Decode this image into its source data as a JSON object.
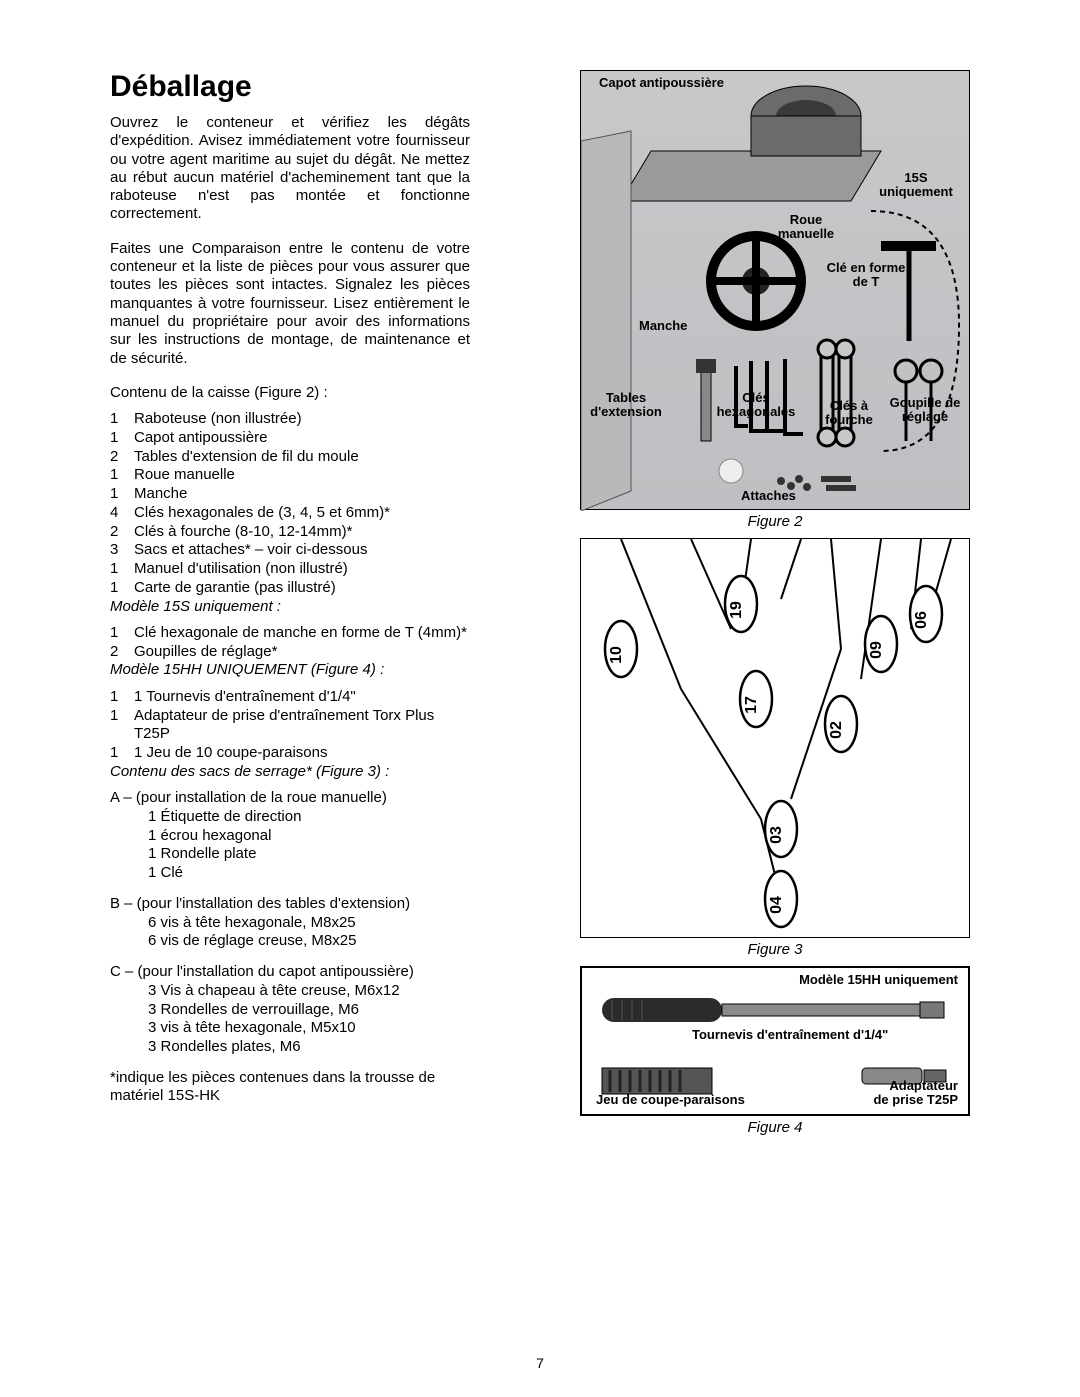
{
  "title": "Déballage",
  "paragraph1": "Ouvrez le conteneur et vérifiez les dégâts d'expédition. Avisez immédiatement votre fournisseur ou votre agent maritime au sujet du dégât. Ne mettez au rébut aucun matériel d'acheminement tant que la raboteuse n'est pas montée et fonctionne correctement.",
  "paragraph2": "Faites une Comparaison entre le contenu de votre conteneur et la liste de pièces pour vous assurer que toutes les pièces sont intactes. Signalez les pièces manquantes à votre fournisseur. Lisez entièrement le manuel du propriétaire pour avoir des informations sur les instructions de montage, de maintenance et de sécurité.",
  "contentsHeading": "Contenu de la caisse (Figure 2) :",
  "contents": [
    {
      "qty": "1",
      "desc": "Raboteuse (non illustrée)"
    },
    {
      "qty": "1",
      "desc": "Capot antipoussière"
    },
    {
      "qty": "2",
      "desc": "Tables d'extension de fil du moule"
    },
    {
      "qty": "1",
      "desc": "Roue manuelle"
    },
    {
      "qty": "1",
      "desc": "Manche"
    },
    {
      "qty": "4",
      "desc": "Clés hexagonales de (3, 4, 5 et 6mm)*"
    },
    {
      "qty": "2",
      "desc": "Clés à fourche (8-10, 12-14mm)*"
    },
    {
      "qty": "3",
      "desc": "Sacs et attaches* – voir ci-dessous"
    },
    {
      "qty": "1",
      "desc": "Manuel d'utilisation (non illustré)"
    },
    {
      "qty": "1",
      "desc": "Carte de garantie (pas illustré)"
    }
  ],
  "model15SHeading": "Modèle 15S uniquement :",
  "model15S": [
    {
      "qty": "1",
      "desc": "Clé hexagonale de manche en forme de T (4mm)*"
    },
    {
      "qty": "2",
      "desc": "Goupilles de réglage*"
    }
  ],
  "model15HHHeading": "Modèle 15HH UNIQUEMENT (Figure 4) :",
  "model15HH": [
    {
      "qty": "1",
      "desc": "1 Tournevis d'entraînement d'1/4\""
    },
    {
      "qty": "1",
      "desc": "Adaptateur de prise d'entraînement Torx Plus T25P"
    },
    {
      "qty": "1",
      "desc": "1 Jeu de 10 coupe-paraisons"
    }
  ],
  "bagsHeading": "Contenu des sacs de serrage* (Figure 3) :",
  "bagA": {
    "first": "A – (pour installation de la roue manuelle)",
    "subs": [
      "1 Étiquette de direction",
      "1 écrou hexagonal",
      "1 Rondelle plate",
      "1 Clé"
    ]
  },
  "bagB": {
    "first": "B – (pour l'installation des tables d'extension)",
    "subs": [
      "6 vis à tête hexagonale, M8x25",
      "6 vis de réglage creuse, M8x25"
    ]
  },
  "bagC": {
    "first": "C – (pour l'installation du capot antipoussière)",
    "subs": [
      "3 Vis à chapeau à tête creuse, M6x12",
      "3 Rondelles de verrouillage, M6",
      "3 vis à tête hexagonale, M5x10",
      "3 Rondelles plates, M6"
    ]
  },
  "footnote": "*indique les pièces contenues dans la trousse de matériel 15S-HK",
  "fig2Caption": "Figure 2",
  "fig3Caption": "Figure 3",
  "fig4Caption": "Figure 4",
  "fig2Labels": {
    "capot": "Capot antipoussière",
    "s15": "15S uniquement",
    "roue": "Roue manuelle",
    "cleT": "Clé en forme de T",
    "manche": "Manche",
    "tables": "Tables d'extension",
    "clesHex": "Clés hexagonales",
    "clesFourche": "Clés à fourche",
    "goupille": "Goupille de réglage",
    "attaches": "Attaches"
  },
  "fig3Numbers": [
    "10",
    "19",
    "17",
    "03",
    "04",
    "02",
    "09",
    "06"
  ],
  "fig4Labels": {
    "model": "Modèle 15HH uniquement",
    "tournevis": "Tournevis d'entraînement d'1/4\"",
    "jeu": "Jeu de coupe-paraisons",
    "adapt1": "Adaptateur",
    "adapt2": "de prise T25P"
  },
  "pageNumber": "7",
  "colors": {
    "black": "#000000",
    "white": "#ffffff",
    "grayBg": "#c3c5c8",
    "metalDark": "#6b6b6b",
    "metalMid": "#9a9a9a"
  }
}
